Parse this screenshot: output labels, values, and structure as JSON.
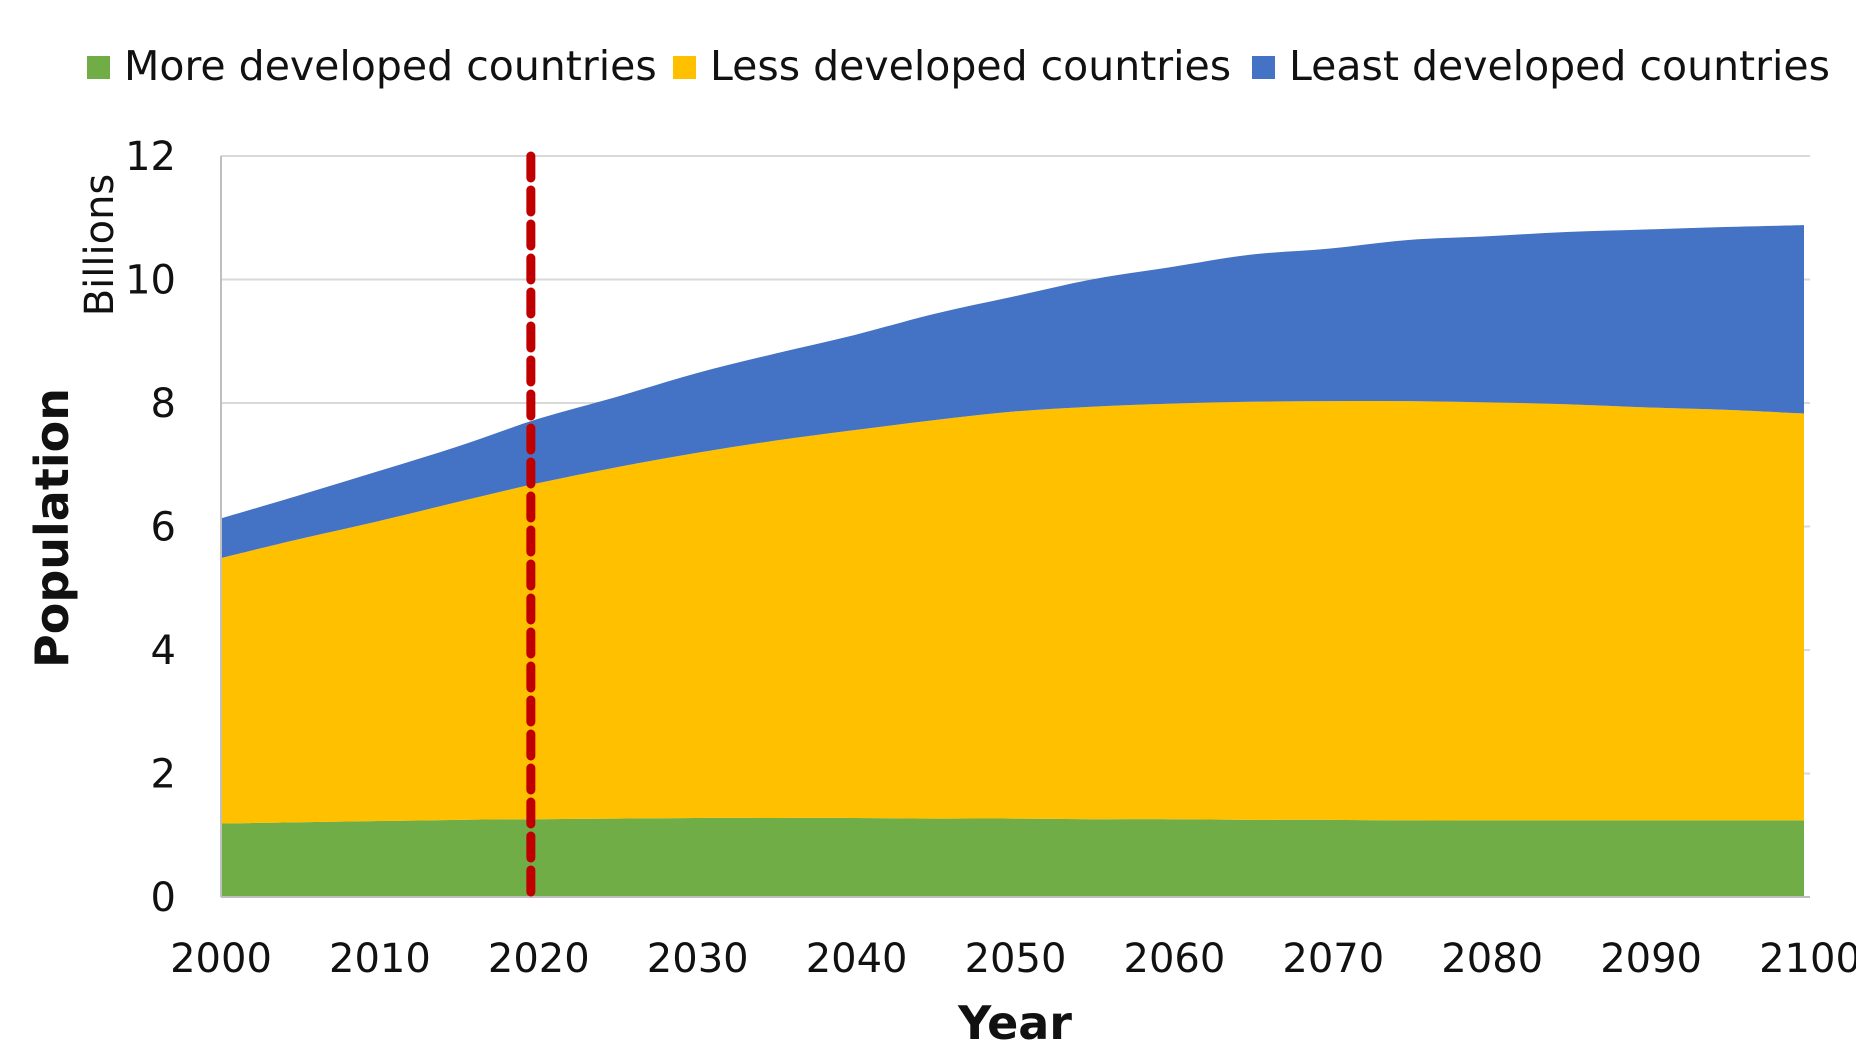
{
  "chart_data": {
    "type": "area",
    "stacked": true,
    "title": "",
    "xlabel": "Year",
    "ylabel": "Population",
    "y_unit_label": "Billions",
    "xlim": [
      2000,
      2100
    ],
    "ylim": [
      0,
      12
    ],
    "x_ticks": [
      2000,
      2010,
      2020,
      2030,
      2040,
      2050,
      2060,
      2070,
      2080,
      2090,
      2100
    ],
    "y_ticks": [
      0,
      2,
      4,
      6,
      8,
      10,
      12
    ],
    "grid": "horizontal",
    "legend_position": "top",
    "marker_line": {
      "x": 2019.5,
      "style": "dashed",
      "color": "#c00000"
    },
    "x": [
      2000,
      2005,
      2010,
      2015,
      2020,
      2025,
      2030,
      2035,
      2040,
      2045,
      2050,
      2055,
      2060,
      2065,
      2070,
      2075,
      2080,
      2085,
      2090,
      2095,
      2100
    ],
    "series": [
      {
        "name": "More developed countries",
        "color": "#70ad47",
        "values": [
          1.19,
          1.21,
          1.23,
          1.25,
          1.26,
          1.27,
          1.28,
          1.28,
          1.28,
          1.27,
          1.27,
          1.26,
          1.26,
          1.25,
          1.25,
          1.24,
          1.24,
          1.24,
          1.24,
          1.24,
          1.24
        ]
      },
      {
        "name": "Less developed countries",
        "color": "#ffc000",
        "values": [
          4.3,
          4.59,
          4.86,
          5.15,
          5.44,
          5.69,
          5.91,
          6.11,
          6.28,
          6.45,
          6.59,
          6.68,
          6.73,
          6.77,
          6.78,
          6.79,
          6.77,
          6.74,
          6.69,
          6.65,
          6.59
        ]
      },
      {
        "name": "Least developed countries",
        "color": "#4472c4",
        "values": [
          0.64,
          0.71,
          0.81,
          0.9,
          1.04,
          1.14,
          1.29,
          1.41,
          1.54,
          1.72,
          1.86,
          2.06,
          2.21,
          2.38,
          2.47,
          2.61,
          2.69,
          2.79,
          2.88,
          2.96,
          3.05
        ]
      }
    ]
  }
}
